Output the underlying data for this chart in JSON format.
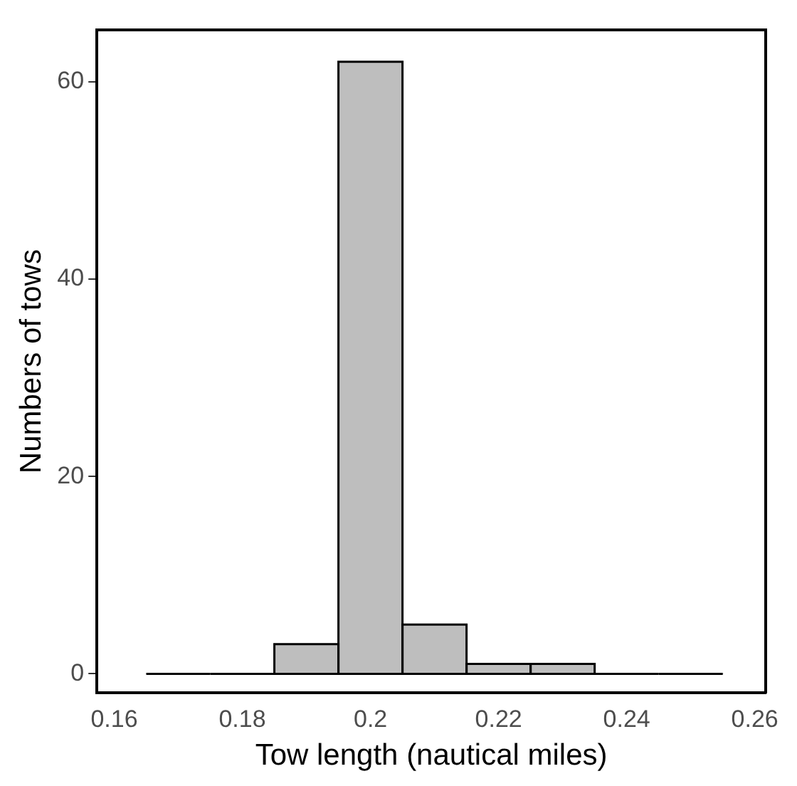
{
  "chart_data": {
    "type": "histogram",
    "xlabel": "Tow length (nautical miles)",
    "ylabel": "Numbers of tows",
    "bins": [
      0.165,
      0.175,
      0.185,
      0.195,
      0.205,
      0.215,
      0.225,
      0.235,
      0.245,
      0.255
    ],
    "values": [
      0,
      0,
      3,
      62,
      5,
      1,
      1,
      0,
      0
    ],
    "color": "#bebebe",
    "xlim": [
      0.1573,
      0.2617
    ],
    "xticks": [
      0.16,
      0.18,
      0.2,
      0.22,
      0.24,
      0.26
    ],
    "ylim": [
      -1.9,
      65.2
    ],
    "yticks": [
      0,
      20,
      40,
      60
    ],
    "grid": false
  }
}
